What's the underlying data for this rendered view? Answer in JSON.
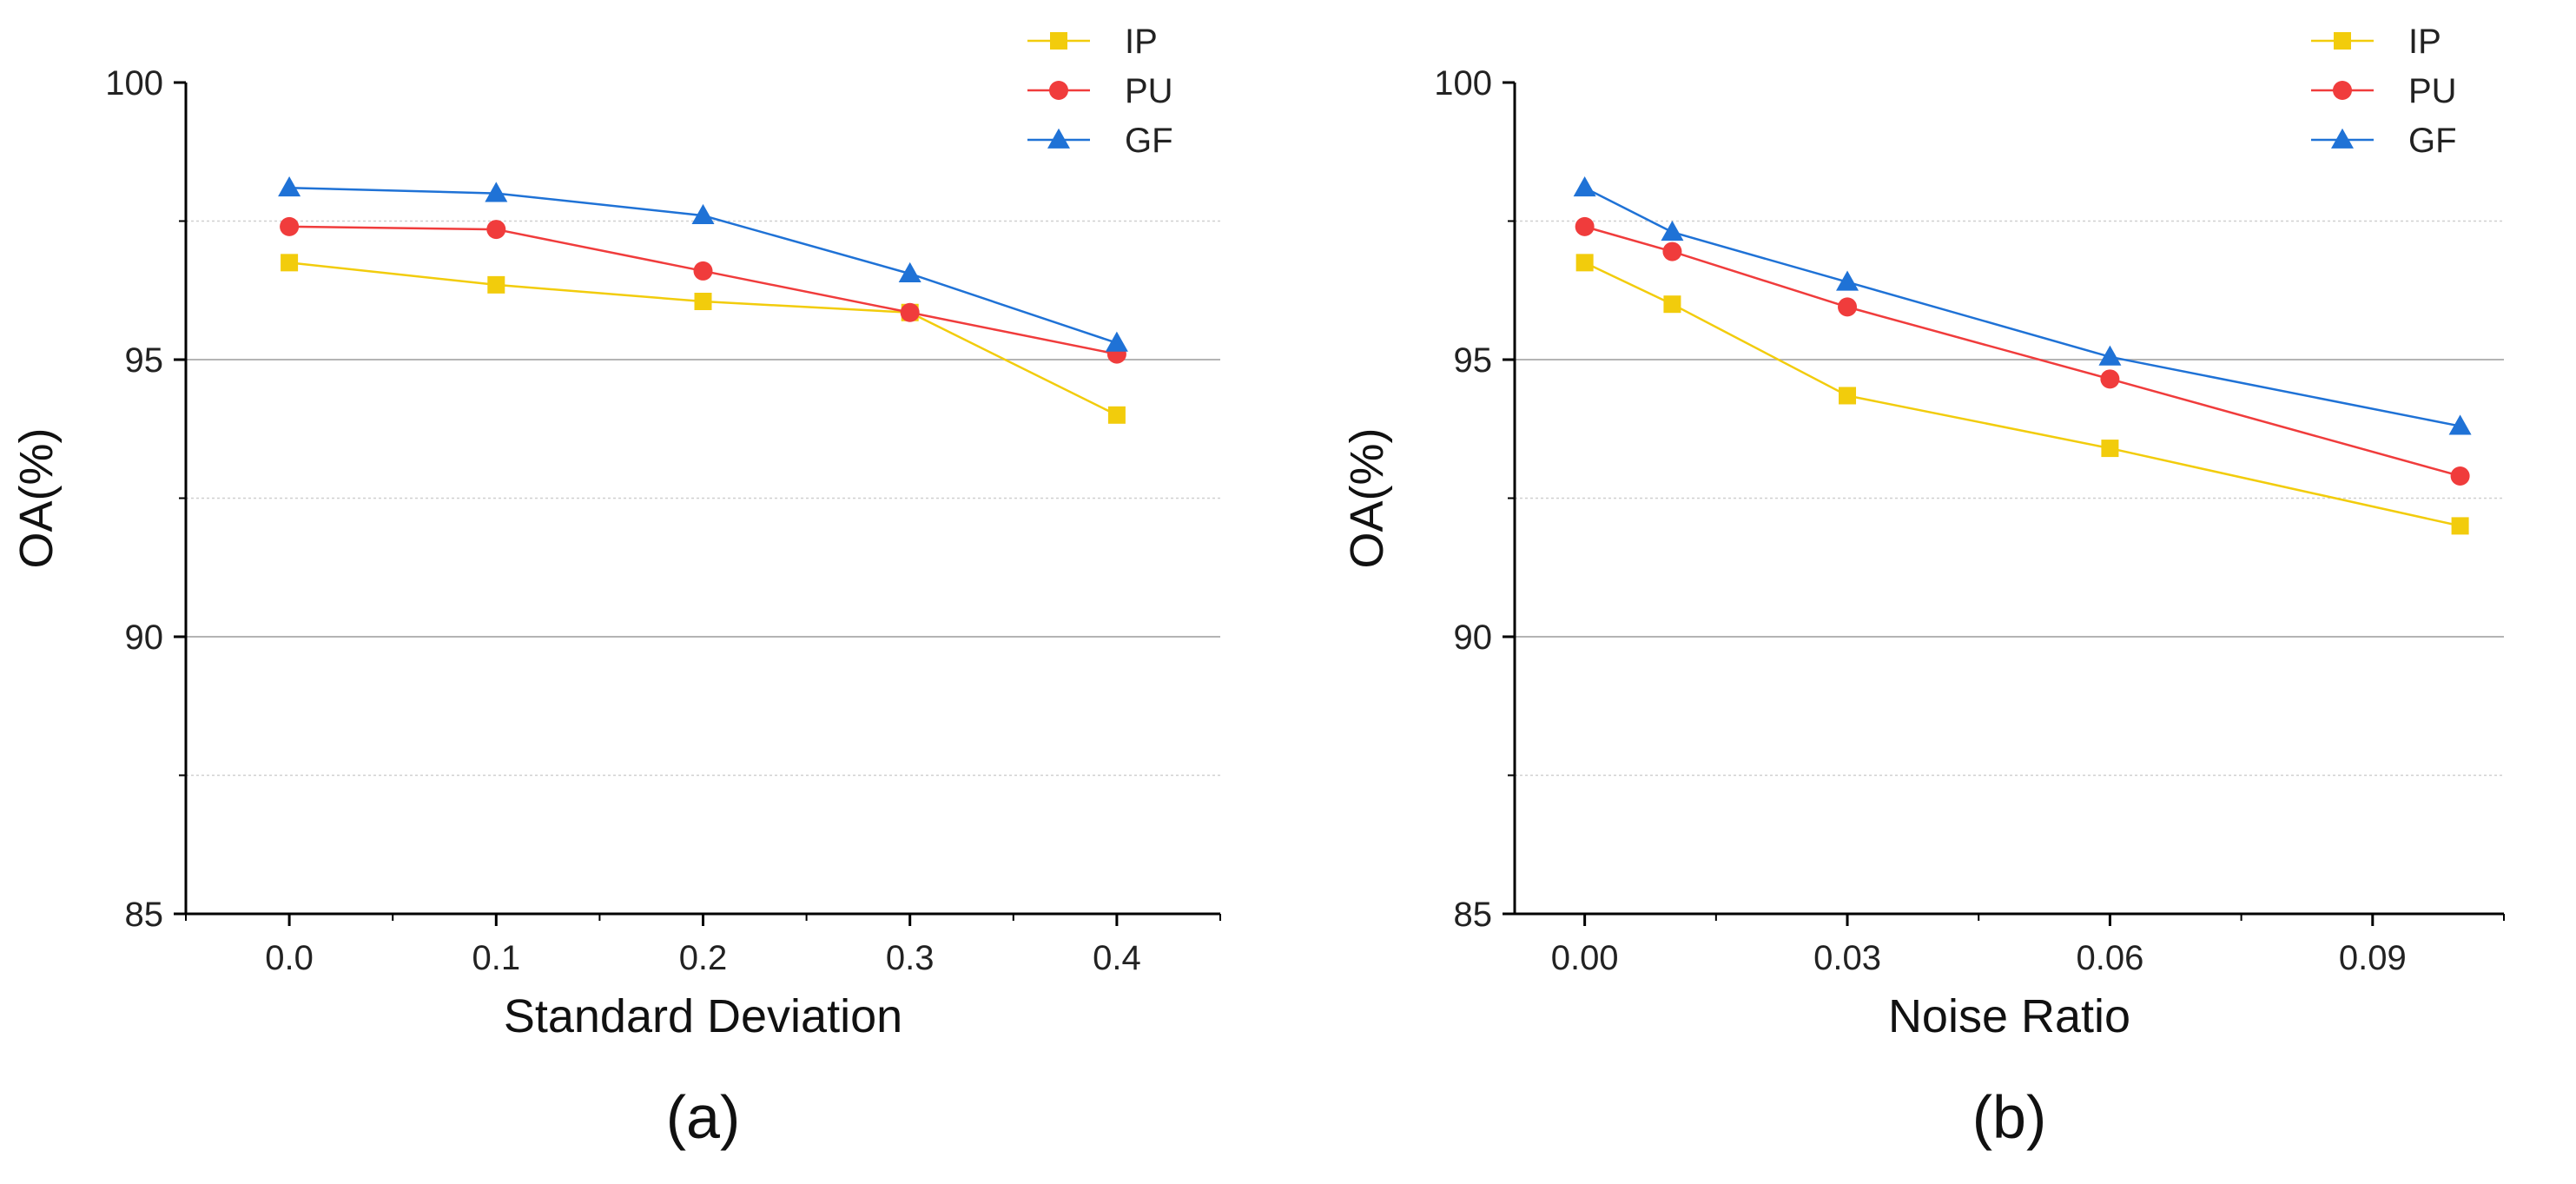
{
  "chart_data": [
    {
      "type": "line",
      "panel_label": "(a)",
      "xlabel": "Standard Deviation",
      "ylabel": "OA(%)",
      "categories": [
        "0.0",
        "0.1",
        "0.2",
        "0.3",
        "0.4"
      ],
      "x": [
        0.0,
        0.1,
        0.2,
        0.3,
        0.4
      ],
      "xlim": [
        -0.05,
        0.45
      ],
      "ylim": [
        85,
        100
      ],
      "yticks": [
        85,
        90,
        95,
        100
      ],
      "grid": "horizontal",
      "legend_position": "top-right",
      "series": [
        {
          "name": "IP",
          "marker": "square",
          "color": "#f2cc0c",
          "values": [
            96.75,
            96.35,
            96.05,
            95.85,
            94.0
          ]
        },
        {
          "name": "PU",
          "marker": "circle",
          "color": "#f03c3c",
          "values": [
            97.4,
            97.35,
            96.6,
            95.85,
            95.1
          ]
        },
        {
          "name": "GF",
          "marker": "triangle",
          "color": "#1f72d6",
          "values": [
            98.1,
            98.0,
            97.6,
            96.55,
            95.3
          ]
        }
      ]
    },
    {
      "type": "line",
      "panel_label": "(b)",
      "xlabel": "Noise Ratio",
      "ylabel": "OA(%)",
      "categories": [
        "0.00",
        "0.03",
        "0.06",
        "0.09"
      ],
      "x": [
        0.0,
        0.01,
        0.03,
        0.06,
        0.1
      ],
      "xtick_values": [
        0.0,
        0.03,
        0.06,
        0.09
      ],
      "xlim": [
        -0.008,
        0.105
      ],
      "ylim": [
        85,
        100
      ],
      "yticks": [
        85,
        90,
        95,
        100
      ],
      "grid": "horizontal",
      "legend_position": "top-right",
      "series": [
        {
          "name": "IP",
          "marker": "square",
          "color": "#f2cc0c",
          "values": [
            96.75,
            96.0,
            94.35,
            93.4,
            92.0
          ]
        },
        {
          "name": "PU",
          "marker": "circle",
          "color": "#f03c3c",
          "values": [
            97.4,
            96.95,
            95.95,
            94.65,
            92.9
          ]
        },
        {
          "name": "GF",
          "marker": "triangle",
          "color": "#1f72d6",
          "values": [
            98.1,
            97.3,
            96.4,
            95.05,
            93.8
          ]
        }
      ]
    }
  ]
}
